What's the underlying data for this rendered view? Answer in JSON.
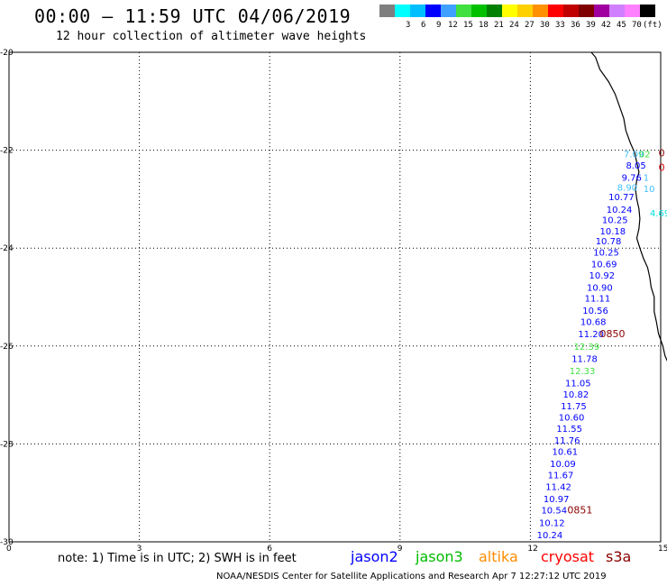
{
  "header": {
    "title": "00:00 – 11:59 UTC 04/06/2019",
    "subtitle": "12 hour collection of altimeter wave heights"
  },
  "colorbar": {
    "unit_label": "(ft)",
    "bins": [
      {
        "label": "",
        "color": "#7f7f7f"
      },
      {
        "label": "3",
        "color": "#00ffff"
      },
      {
        "label": "6",
        "color": "#00bfff"
      },
      {
        "label": "9",
        "color": "#0000ff"
      },
      {
        "label": "12",
        "color": "#40a0ff"
      },
      {
        "label": "15",
        "color": "#40e040"
      },
      {
        "label": "18",
        "color": "#00c000"
      },
      {
        "label": "21",
        "color": "#008000"
      },
      {
        "label": "24",
        "color": "#ffff00"
      },
      {
        "label": "27",
        "color": "#ffd000"
      },
      {
        "label": "30",
        "color": "#ff9000"
      },
      {
        "label": "33",
        "color": "#ff0000"
      },
      {
        "label": "36",
        "color": "#c00000"
      },
      {
        "label": "39",
        "color": "#800000"
      },
      {
        "label": "42",
        "color": "#a000a0"
      },
      {
        "label": "45",
        "color": "#d080ff"
      },
      {
        "label": "70",
        "color": "#ff80ff"
      },
      {
        "label": "",
        "color": "#000000"
      }
    ]
  },
  "map": {
    "lat_ticks": [
      "-20",
      "-22",
      "-24",
      "-26",
      "-28",
      "-30"
    ],
    "lon_ticks": [
      "0",
      "3",
      "6",
      "9",
      "12",
      "15"
    ],
    "lat_range": [
      -30,
      -20
    ],
    "lon_range": [
      0,
      15
    ],
    "coastline": [
      [
        13.4,
        -20.0
      ],
      [
        13.5,
        -20.1
      ],
      [
        13.6,
        -20.35
      ],
      [
        13.8,
        -20.6
      ],
      [
        13.95,
        -20.85
      ],
      [
        14.05,
        -21.1
      ],
      [
        14.15,
        -21.35
      ],
      [
        14.2,
        -21.6
      ],
      [
        14.3,
        -21.85
      ],
      [
        14.4,
        -22.05
      ],
      [
        14.45,
        -22.25
      ],
      [
        14.5,
        -22.45
      ],
      [
        14.45,
        -22.6
      ],
      [
        14.42,
        -22.8
      ],
      [
        14.45,
        -23.0
      ],
      [
        14.5,
        -23.2
      ],
      [
        14.52,
        -23.4
      ],
      [
        14.5,
        -23.6
      ],
      [
        14.45,
        -23.8
      ],
      [
        14.52,
        -24.0
      ],
      [
        14.6,
        -24.2
      ],
      [
        14.7,
        -24.4
      ],
      [
        14.75,
        -24.6
      ],
      [
        14.78,
        -24.8
      ],
      [
        14.85,
        -25.0
      ],
      [
        14.85,
        -25.3
      ],
      [
        14.9,
        -25.5
      ],
      [
        14.95,
        -25.75
      ],
      [
        15.05,
        -26.0
      ],
      [
        15.1,
        -26.2
      ],
      [
        15.2,
        -26.4
      ]
    ],
    "missions": [
      {
        "name": "jason2",
        "color": "#0000ff"
      },
      {
        "name": "jason3",
        "color": "#00bb00"
      },
      {
        "name": "altika",
        "color": "#ff8c00"
      },
      {
        "name": "cryosat",
        "color": "#ff0000"
      },
      {
        "name": "s3a",
        "color": "#8b0000"
      }
    ],
    "observations": [
      {
        "lon": 14.15,
        "lat": -22.07,
        "text": "7.09",
        "color": "#40c0ff"
      },
      {
        "lon": 14.5,
        "lat": -22.07,
        "text": "02",
        "color": "#40e040"
      },
      {
        "lon": 14.2,
        "lat": -22.3,
        "text": "8.05",
        "color": "#0000ff"
      },
      {
        "lon": 14.1,
        "lat": -22.55,
        "text": "9.76",
        "color": "#0000ff"
      },
      {
        "lon": 14.6,
        "lat": -22.55,
        "text": "1",
        "color": "#40c0ff"
      },
      {
        "lon": 14.0,
        "lat": -22.75,
        "text": "8.90",
        "color": "#40c0ff"
      },
      {
        "lon": 14.6,
        "lat": -22.78,
        "text": "10",
        "color": "#40c0ff"
      },
      {
        "lon": 13.8,
        "lat": -22.95,
        "text": "10.77",
        "color": "#0000ff"
      },
      {
        "lon": 13.75,
        "lat": -23.2,
        "text": "10.24",
        "color": "#0000ff"
      },
      {
        "lon": 14.75,
        "lat": -23.28,
        "text": "4.69",
        "color": "#00e0e0"
      },
      {
        "lon": 13.65,
        "lat": -23.42,
        "text": "10.25",
        "color": "#0000ff"
      },
      {
        "lon": 13.6,
        "lat": -23.65,
        "text": "10.18",
        "color": "#0000ff"
      },
      {
        "lon": 13.5,
        "lat": -23.85,
        "text": "10.78",
        "color": "#0000ff"
      },
      {
        "lon": 13.45,
        "lat": -24.08,
        "text": "10.25",
        "color": "#0000ff"
      },
      {
        "lon": 13.4,
        "lat": -24.32,
        "text": "10.69",
        "color": "#0000ff"
      },
      {
        "lon": 13.35,
        "lat": -24.55,
        "text": "10.92",
        "color": "#0000ff"
      },
      {
        "lon": 13.3,
        "lat": -24.8,
        "text": "10.90",
        "color": "#0000ff"
      },
      {
        "lon": 13.25,
        "lat": -25.02,
        "text": "11.11",
        "color": "#0000ff"
      },
      {
        "lon": 13.2,
        "lat": -25.27,
        "text": "10.56",
        "color": "#0000ff"
      },
      {
        "lon": 13.15,
        "lat": -25.5,
        "text": "10.68",
        "color": "#0000ff"
      },
      {
        "lon": 13.1,
        "lat": -25.75,
        "text": "11.20",
        "color": "#0000ff"
      },
      {
        "lon": 13.0,
        "lat": -26.0,
        "text": "12.39",
        "color": "#40e040"
      },
      {
        "lon": 12.95,
        "lat": -26.25,
        "text": "11.78",
        "color": "#0000ff"
      },
      {
        "lon": 12.9,
        "lat": -26.5,
        "text": "12.33",
        "color": "#40e040"
      },
      {
        "lon": 12.8,
        "lat": -26.75,
        "text": "11.05",
        "color": "#0000ff"
      },
      {
        "lon": 12.75,
        "lat": -26.98,
        "text": "10.82",
        "color": "#0000ff"
      },
      {
        "lon": 12.7,
        "lat": -27.22,
        "text": "11.75",
        "color": "#0000ff"
      },
      {
        "lon": 12.65,
        "lat": -27.45,
        "text": "10.60",
        "color": "#0000ff"
      },
      {
        "lon": 12.6,
        "lat": -27.68,
        "text": "11.55",
        "color": "#0000ff"
      },
      {
        "lon": 12.55,
        "lat": -27.92,
        "text": "11.76",
        "color": "#0000ff"
      },
      {
        "lon": 12.5,
        "lat": -28.15,
        "text": "10.61",
        "color": "#0000ff"
      },
      {
        "lon": 12.45,
        "lat": -28.4,
        "text": "10.09",
        "color": "#0000ff"
      },
      {
        "lon": 12.4,
        "lat": -28.63,
        "text": "11.67",
        "color": "#0000ff"
      },
      {
        "lon": 12.35,
        "lat": -28.87,
        "text": "11.42",
        "color": "#0000ff"
      },
      {
        "lon": 12.3,
        "lat": -29.12,
        "text": "10.97",
        "color": "#0000ff"
      },
      {
        "lon": 12.25,
        "lat": -29.35,
        "text": "10.54",
        "color": "#0000ff"
      },
      {
        "lon": 12.2,
        "lat": -29.6,
        "text": "10.12",
        "color": "#0000ff"
      },
      {
        "lon": 12.15,
        "lat": -29.85,
        "text": "10.24",
        "color": "#0000ff"
      }
    ],
    "pass_times": [
      {
        "lon": 14.95,
        "lat": -22.05,
        "text": "0",
        "color": "#8b0000"
      },
      {
        "lon": 14.95,
        "lat": -22.35,
        "text": "0",
        "color": "#cc0000"
      },
      {
        "lon": 13.6,
        "lat": -25.75,
        "text": "0850",
        "color": "#8b0000"
      },
      {
        "lon": 12.85,
        "lat": -29.35,
        "text": "0851",
        "color": "#8b0000"
      }
    ]
  },
  "legend": {
    "note": "note: 1) Time is in UTC; 2) SWH is in feet"
  },
  "footer": {
    "credit": "NOAA/NESDIS Center for Satellite Applications and Research   Apr  7 12:27:12 UTC 2019"
  }
}
